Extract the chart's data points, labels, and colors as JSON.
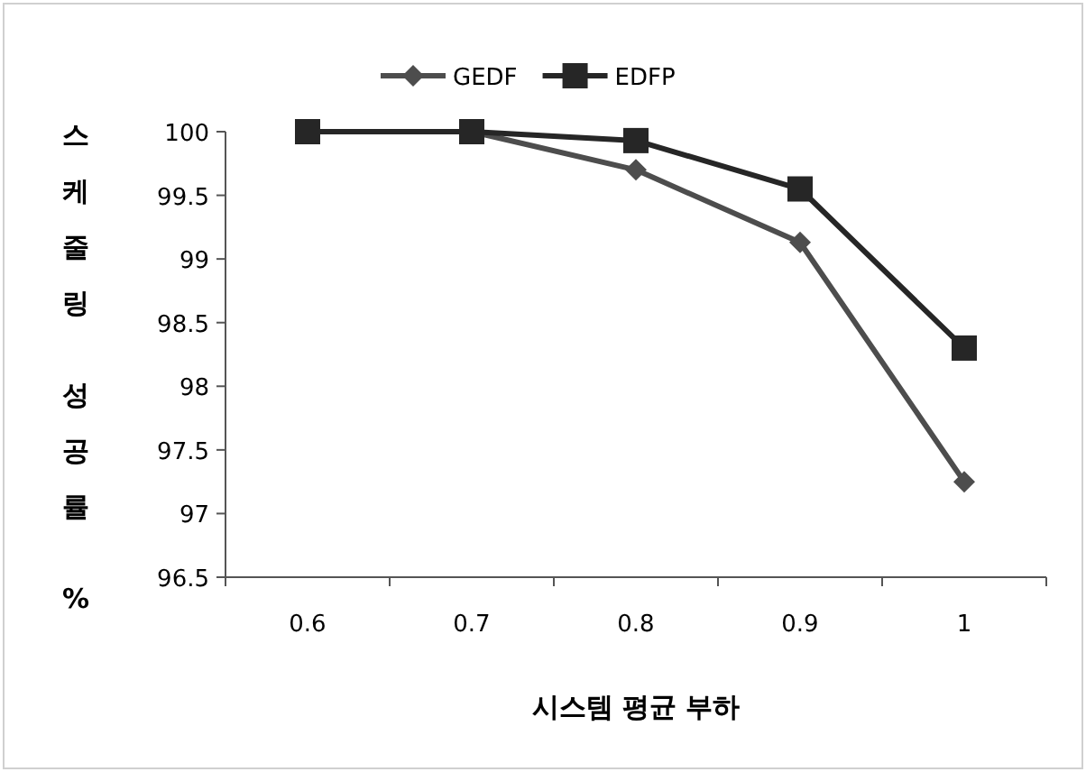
{
  "chart_data": {
    "type": "line",
    "xlabel": "시스템 평균 부하",
    "ylabel": "스케줄링 성공률 %",
    "categories": [
      "0.6",
      "0.7",
      "0.8",
      "0.9",
      "1"
    ],
    "series": [
      {
        "name": "GEDF",
        "color": "#4d4d4d",
        "marker": "diamond",
        "values": [
          100,
          100,
          99.7,
          99.13,
          97.25
        ]
      },
      {
        "name": "EDFP",
        "color": "#262626",
        "marker": "square",
        "values": [
          100,
          100,
          99.93,
          99.55,
          98.3
        ]
      }
    ],
    "ylim": [
      96.5,
      100
    ],
    "yticks": [
      96.5,
      97,
      97.5,
      98,
      98.5,
      99,
      99.5,
      100
    ],
    "grid": false,
    "legend": "top",
    "line_style": "solid"
  }
}
